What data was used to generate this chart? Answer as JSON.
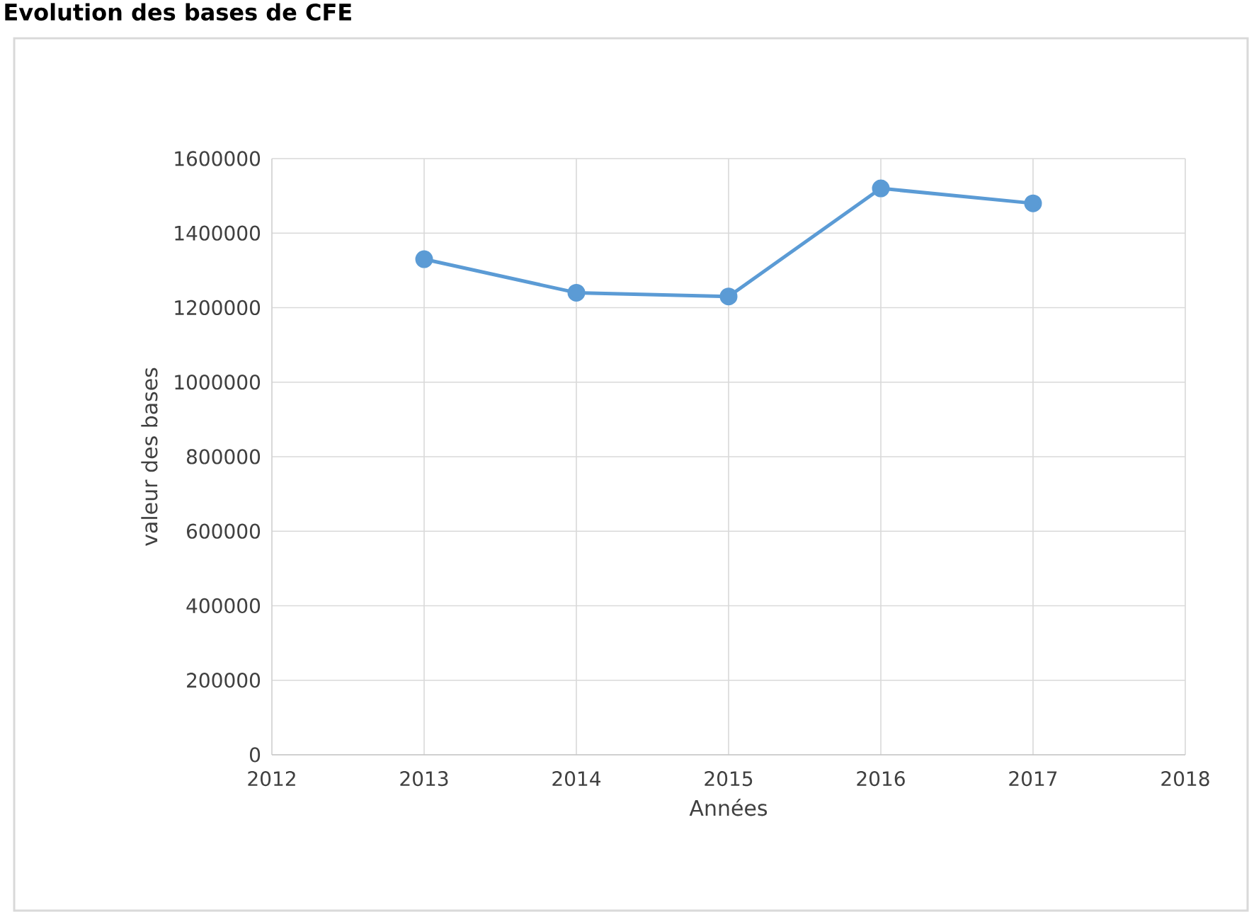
{
  "chart_data": {
    "type": "line",
    "title": "Evolution des bases de CFE",
    "xlabel": "Années",
    "ylabel": "valeur des bases",
    "x": [
      2013,
      2014,
      2015,
      2016,
      2017
    ],
    "series": [
      {
        "color": "#5b9bd5",
        "values": [
          1330000,
          1240000,
          1230000,
          1520000,
          1480000
        ]
      }
    ],
    "xlim": [
      2012,
      2018
    ],
    "xticks": [
      2012,
      2013,
      2014,
      2015,
      2016,
      2017,
      2018
    ],
    "ylim": [
      0,
      1600000
    ],
    "yticks": [
      0,
      200000,
      400000,
      600000,
      800000,
      1000000,
      1200000,
      1400000,
      1600000
    ],
    "grid": true,
    "marker": "circle",
    "line_style": "solid"
  }
}
